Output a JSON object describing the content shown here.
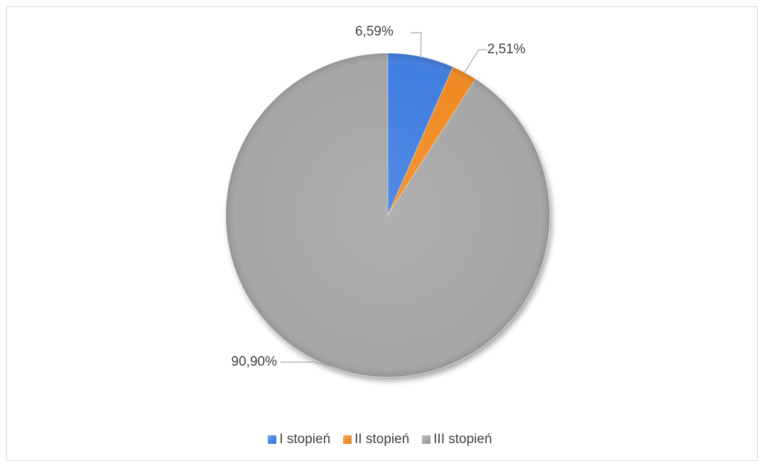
{
  "chart_data": {
    "type": "pie",
    "title": "",
    "slices": [
      {
        "name": "I stopień",
        "value": 6.59,
        "label": "6,59%",
        "color": "#3f7ee0"
      },
      {
        "name": "II stopień",
        "value": 2.51,
        "label": "2,51%",
        "color": "#f08a24"
      },
      {
        "name": "III stopień",
        "value": 90.9,
        "label": "90,90%",
        "color": "#a6a6a6"
      }
    ],
    "legend_position": "bottom"
  }
}
